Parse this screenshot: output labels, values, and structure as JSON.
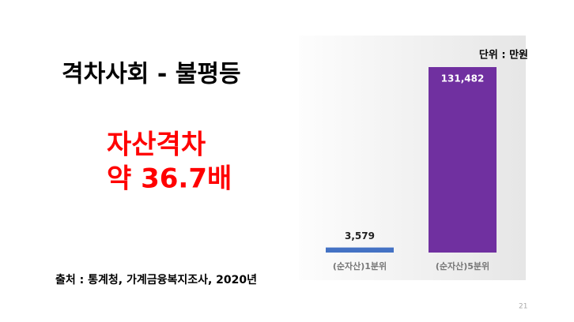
{
  "title": "격차사회 - 불평등",
  "highlight": [
    "자산격차",
    "약 36.7배"
  ],
  "source": "출처 : 통계청, 가계금융복지조사, 2020년",
  "page_number": 21,
  "chart_data": {
    "type": "bar",
    "unit_label": "단위 : 만원",
    "categories": [
      "(순자산)1분위",
      "(순자산)5분위"
    ],
    "values": [
      3579,
      131482
    ],
    "value_labels": [
      "3,579",
      "131,482"
    ],
    "colors": [
      "#4472c4",
      "#7030a0"
    ]
  }
}
